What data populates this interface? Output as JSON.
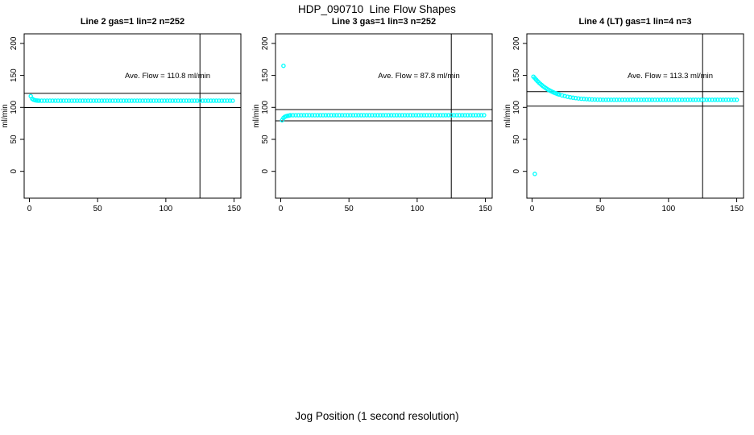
{
  "page": {
    "title": "HDP_090710  Line Flow Shapes",
    "xlabel": "Jog Position (1 second resolution)"
  },
  "chart_data": [
    {
      "type": "scatter",
      "title": "Line 2 gas=1 lin=2 n=252",
      "annotation": "Ave. Flow =  110.8  ml/min",
      "ave_flow_ml_min": 110.8,
      "n": 252,
      "ylabel": "ml/min",
      "x_ticks": [
        0,
        50,
        100,
        150
      ],
      "y_ticks": [
        0,
        50,
        100,
        150,
        200
      ],
      "xlim": [
        0,
        150
      ],
      "ref_line_upper": 121.9,
      "ref_line_lower": 99.7,
      "ref_line_vertical_x": 125,
      "marker_color": "#00ffff",
      "points": [
        [
          1,
          117.5
        ],
        [
          2,
          113.5
        ],
        [
          3,
          112.0
        ],
        [
          4,
          111.2
        ],
        [
          5,
          110.8
        ],
        [
          6,
          110.6
        ]
      ],
      "plateau_run": {
        "x0": 7,
        "x1": 149,
        "step": 2,
        "y": 110.4
      },
      "outliers": []
    },
    {
      "type": "scatter",
      "title": "Line 3 gas=1 lin=3 n=252",
      "annotation": "Ave. Flow =  87.8  ml/min",
      "ave_flow_ml_min": 87.8,
      "n": 252,
      "ylabel": "ml/min",
      "x_ticks": [
        0,
        50,
        100,
        150
      ],
      "y_ticks": [
        0,
        50,
        100,
        150,
        200
      ],
      "xlim": [
        0,
        150
      ],
      "ref_line_upper": 96.6,
      "ref_line_lower": 79.0,
      "ref_line_vertical_x": 125,
      "marker_color": "#00ffff",
      "points": [
        [
          1,
          80.0
        ],
        [
          2,
          83.5
        ],
        [
          3,
          85.3
        ],
        [
          4,
          86.2
        ],
        [
          5,
          86.8
        ],
        [
          6,
          87.1
        ]
      ],
      "plateau_run": {
        "x0": 7,
        "x1": 149,
        "step": 2,
        "y": 87.8
      },
      "outliers": [
        [
          2,
          165
        ]
      ]
    },
    {
      "type": "scatter",
      "title": "Line 4 (LT) gas=1 lin=4 n=3",
      "annotation": "Ave. Flow =  113.3  ml/min",
      "ave_flow_ml_min": 113.3,
      "n": 3,
      "ylabel": "ml/min",
      "x_ticks": [
        0,
        50,
        100,
        150
      ],
      "y_ticks": [
        0,
        50,
        100,
        150,
        200
      ],
      "xlim": [
        0,
        150
      ],
      "ref_line_upper": 124.6,
      "ref_line_lower": 102.0,
      "ref_line_vertical_x": 125,
      "marker_color": "#00ffff",
      "points": [
        [
          1,
          148.0
        ],
        [
          2,
          145.6
        ],
        [
          3,
          143.2
        ],
        [
          4,
          140.9
        ],
        [
          5,
          138.8
        ],
        [
          6,
          136.8
        ],
        [
          7,
          135.0
        ],
        [
          8,
          133.3
        ],
        [
          9,
          131.7
        ],
        [
          10,
          130.2
        ],
        [
          11,
          128.8
        ],
        [
          12,
          127.5
        ],
        [
          13,
          126.3
        ],
        [
          14,
          125.2
        ],
        [
          15,
          124.2
        ],
        [
          16,
          123.2
        ],
        [
          17,
          122.3
        ],
        [
          18,
          121.5
        ],
        [
          19,
          120.7
        ],
        [
          20,
          120.0
        ],
        [
          22,
          118.7
        ],
        [
          24,
          117.6
        ],
        [
          26,
          116.6
        ],
        [
          28,
          115.8
        ],
        [
          30,
          115.1
        ],
        [
          32,
          114.5
        ],
        [
          34,
          114.0
        ],
        [
          36,
          113.5
        ],
        [
          38,
          113.2
        ],
        [
          40,
          112.9
        ],
        [
          42,
          112.6
        ],
        [
          44,
          112.4
        ],
        [
          46,
          112.2
        ],
        [
          48,
          112.1
        ],
        [
          50,
          112.0
        ],
        [
          52,
          111.9
        ],
        [
          54,
          111.9
        ],
        [
          56,
          111.8
        ]
      ],
      "plateau_run": {
        "x0": 58,
        "x1": 150,
        "step": 2,
        "y": 111.9
      },
      "outliers": [
        [
          2,
          -4
        ]
      ]
    }
  ]
}
